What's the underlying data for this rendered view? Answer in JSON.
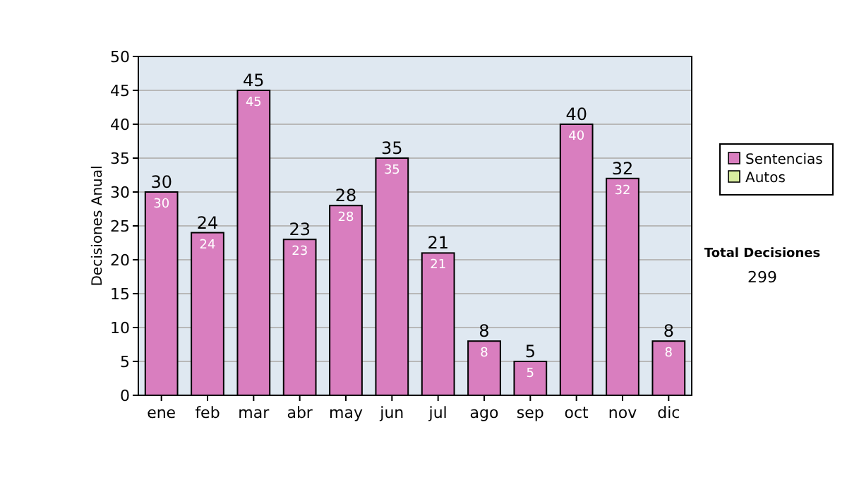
{
  "chart_data": {
    "type": "bar",
    "stacked": true,
    "ylabel": "Decisiones Anual",
    "categories": [
      "ene",
      "feb",
      "mar",
      "abr",
      "may",
      "jun",
      "jul",
      "ago",
      "sep",
      "oct",
      "nov",
      "dic"
    ],
    "series": [
      {
        "name": "Sentencias",
        "color": "#d97ebf",
        "values": [
          30,
          24,
          45,
          23,
          28,
          35,
          21,
          8,
          5,
          40,
          32,
          8
        ],
        "value_labels": [
          "30",
          "24",
          "45",
          "23",
          "28",
          "35",
          "21",
          "8",
          "5",
          "40",
          "32",
          "8"
        ]
      },
      {
        "name": "Autos",
        "color": "#d9eda0",
        "values": [
          0,
          0,
          0,
          0,
          0,
          0,
          0,
          0,
          0,
          0,
          0,
          0
        ]
      }
    ],
    "totals": [
      "30",
      "24",
      "45",
      "23",
      "28",
      "35",
      "21",
      "8",
      "5",
      "40",
      "32",
      "8"
    ],
    "ylim": [
      0,
      50
    ],
    "yticks": [
      0,
      5,
      10,
      15,
      20,
      25,
      30,
      35,
      40,
      45,
      50
    ],
    "grid": "y",
    "legend": "right",
    "annotations": [
      "Total Decisiones",
      "299"
    ]
  }
}
